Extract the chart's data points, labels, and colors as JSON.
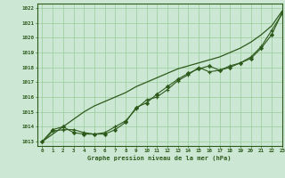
{
  "title": "Graphe pression niveau de la mer (hPa)",
  "xlim": [
    -0.5,
    22.5
  ],
  "ylim": [
    1012.7,
    1022.3
  ],
  "xticks": [
    0,
    1,
    2,
    3,
    4,
    5,
    6,
    7,
    8,
    9,
    10,
    11,
    12,
    13,
    14,
    15,
    16,
    17,
    18,
    19,
    20,
    21,
    22,
    23
  ],
  "yticks": [
    1013,
    1014,
    1015,
    1016,
    1017,
    1018,
    1019,
    1020,
    1021,
    1022
  ],
  "bg_color": "#cce8d4",
  "grid_color": "#99cc99",
  "line_color": "#2d5a1b",
  "series_smooth": [
    1013.0,
    1013.5,
    1014.0,
    1014.5,
    1015.0,
    1015.4,
    1015.7,
    1016.0,
    1016.3,
    1016.7,
    1017.0,
    1017.3,
    1017.6,
    1017.9,
    1018.1,
    1018.3,
    1018.5,
    1018.7,
    1019.0,
    1019.3,
    1019.7,
    1020.2,
    1020.8,
    1021.8
  ],
  "series_markers1": [
    1013.0,
    1013.7,
    1013.8,
    1013.8,
    1013.6,
    1013.5,
    1013.6,
    1014.0,
    1014.4,
    1015.2,
    1015.8,
    1016.0,
    1016.5,
    1017.1,
    1017.5,
    1018.0,
    1017.7,
    1017.8,
    1018.1,
    1018.3,
    1018.7,
    1019.4,
    1020.5,
    1021.6
  ],
  "series_markers2": [
    1013.0,
    1013.8,
    1014.0,
    1013.6,
    1013.5,
    1013.5,
    1013.5,
    1013.8,
    1014.3,
    1015.3,
    1015.6,
    1016.2,
    1016.7,
    1017.2,
    1017.6,
    1017.9,
    1018.1,
    1017.8,
    1018.0,
    1018.3,
    1018.6,
    1019.3,
    1020.2,
    1021.7
  ]
}
